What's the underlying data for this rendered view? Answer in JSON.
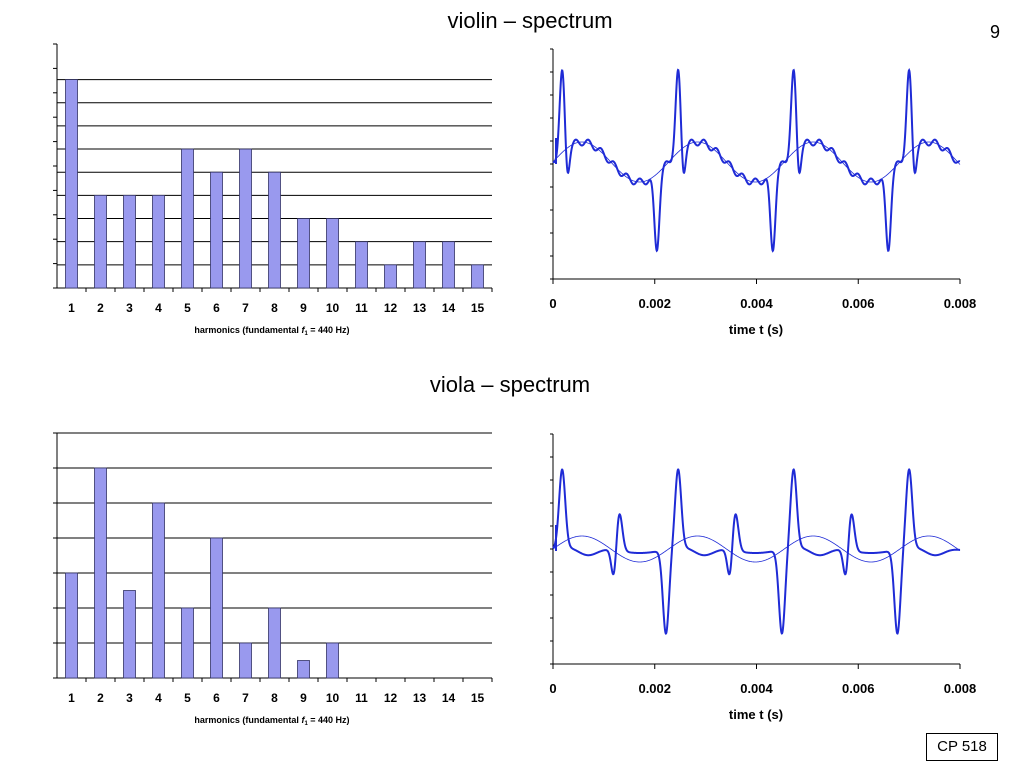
{
  "page": {
    "number": "9",
    "footer_badge": "CP 518"
  },
  "colors": {
    "bar_fill": "#9999ee",
    "bar_stroke": "#333366",
    "wave": "#1f2bd6",
    "axis": "#000000"
  },
  "charts": {
    "violin": {
      "title": "violin – spectrum",
      "spectrum": {
        "type": "bar",
        "categories": [
          "1",
          "2",
          "3",
          "4",
          "5",
          "6",
          "7",
          "8",
          "9",
          "10",
          "11",
          "12",
          "13",
          "14",
          "15"
        ],
        "values": [
          9,
          4,
          4,
          4,
          6,
          5,
          6,
          5,
          3,
          3,
          2,
          1,
          2,
          2,
          1
        ],
        "ylim": [
          0,
          9.5
        ],
        "xlabel_pre": "harmonics  (fundamental  ",
        "xlabel_f": "f",
        "xlabel_sub": "1",
        "xlabel_post": " = 440 Hz)"
      },
      "waveform": {
        "type": "line",
        "xlim": [
          0,
          0.008
        ],
        "xticks": [
          "0",
          "0.002",
          "0.004",
          "0.006",
          "0.008"
        ],
        "xlabel": "time t (s)"
      }
    },
    "viola": {
      "title": "viola – spectrum",
      "spectrum": {
        "type": "bar",
        "categories": [
          "1",
          "2",
          "3",
          "4",
          "5",
          "6",
          "7",
          "8",
          "9",
          "10",
          "11",
          "12",
          "13",
          "14",
          "15"
        ],
        "values": [
          3,
          6,
          2.5,
          5,
          2,
          4,
          1,
          2,
          0.5,
          1,
          0,
          0,
          0,
          0,
          0
        ],
        "ylim": [
          0,
          7
        ],
        "xlabel_pre": "harmonics  (fundamental  ",
        "xlabel_f": "f",
        "xlabel_sub": "1",
        "xlabel_post": " = 440 Hz)"
      },
      "waveform": {
        "type": "line",
        "xlim": [
          0,
          0.008
        ],
        "xticks": [
          "0",
          "0.002",
          "0.004",
          "0.006",
          "0.008"
        ],
        "xlabel": "time t (s)"
      }
    }
  }
}
